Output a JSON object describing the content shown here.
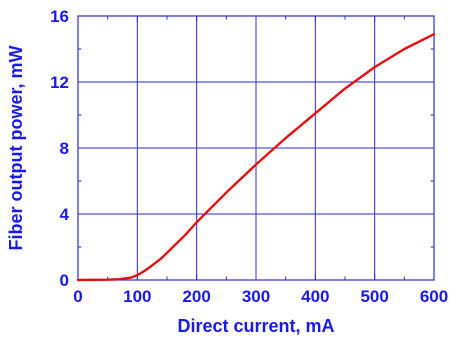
{
  "chart_data": {
    "type": "line",
    "title": "",
    "xlabel": "Direct current, mA",
    "ylabel": "Fiber output power, mW",
    "xlim": [
      0,
      600
    ],
    "ylim": [
      0,
      16
    ],
    "x_ticks": [
      0,
      100,
      200,
      300,
      400,
      500,
      600
    ],
    "y_ticks": [
      0,
      4,
      8,
      12,
      16
    ],
    "x_tick_labels": [
      "0",
      "100",
      "200",
      "300",
      "400",
      "500",
      "600"
    ],
    "y_tick_labels": [
      "0",
      "4",
      "8",
      "12",
      "16"
    ],
    "x_minor_step": 50,
    "y_minor_step": 2,
    "grid": true,
    "legend": "none",
    "colors": {
      "text": "#1a1ae6",
      "grid": "#2b2bd0",
      "line": "#e01010"
    },
    "series": [
      {
        "x": [
          0,
          50,
          70,
          80,
          90,
          100,
          110,
          120,
          140,
          160,
          180,
          200,
          250,
          300,
          350,
          400,
          450,
          500,
          550,
          600
        ],
        "y": [
          0,
          0.02,
          0.05,
          0.1,
          0.15,
          0.3,
          0.5,
          0.75,
          1.3,
          2.0,
          2.7,
          3.5,
          5.3,
          7.0,
          8.6,
          10.1,
          11.6,
          12.9,
          14.0,
          14.9
        ]
      }
    ]
  }
}
